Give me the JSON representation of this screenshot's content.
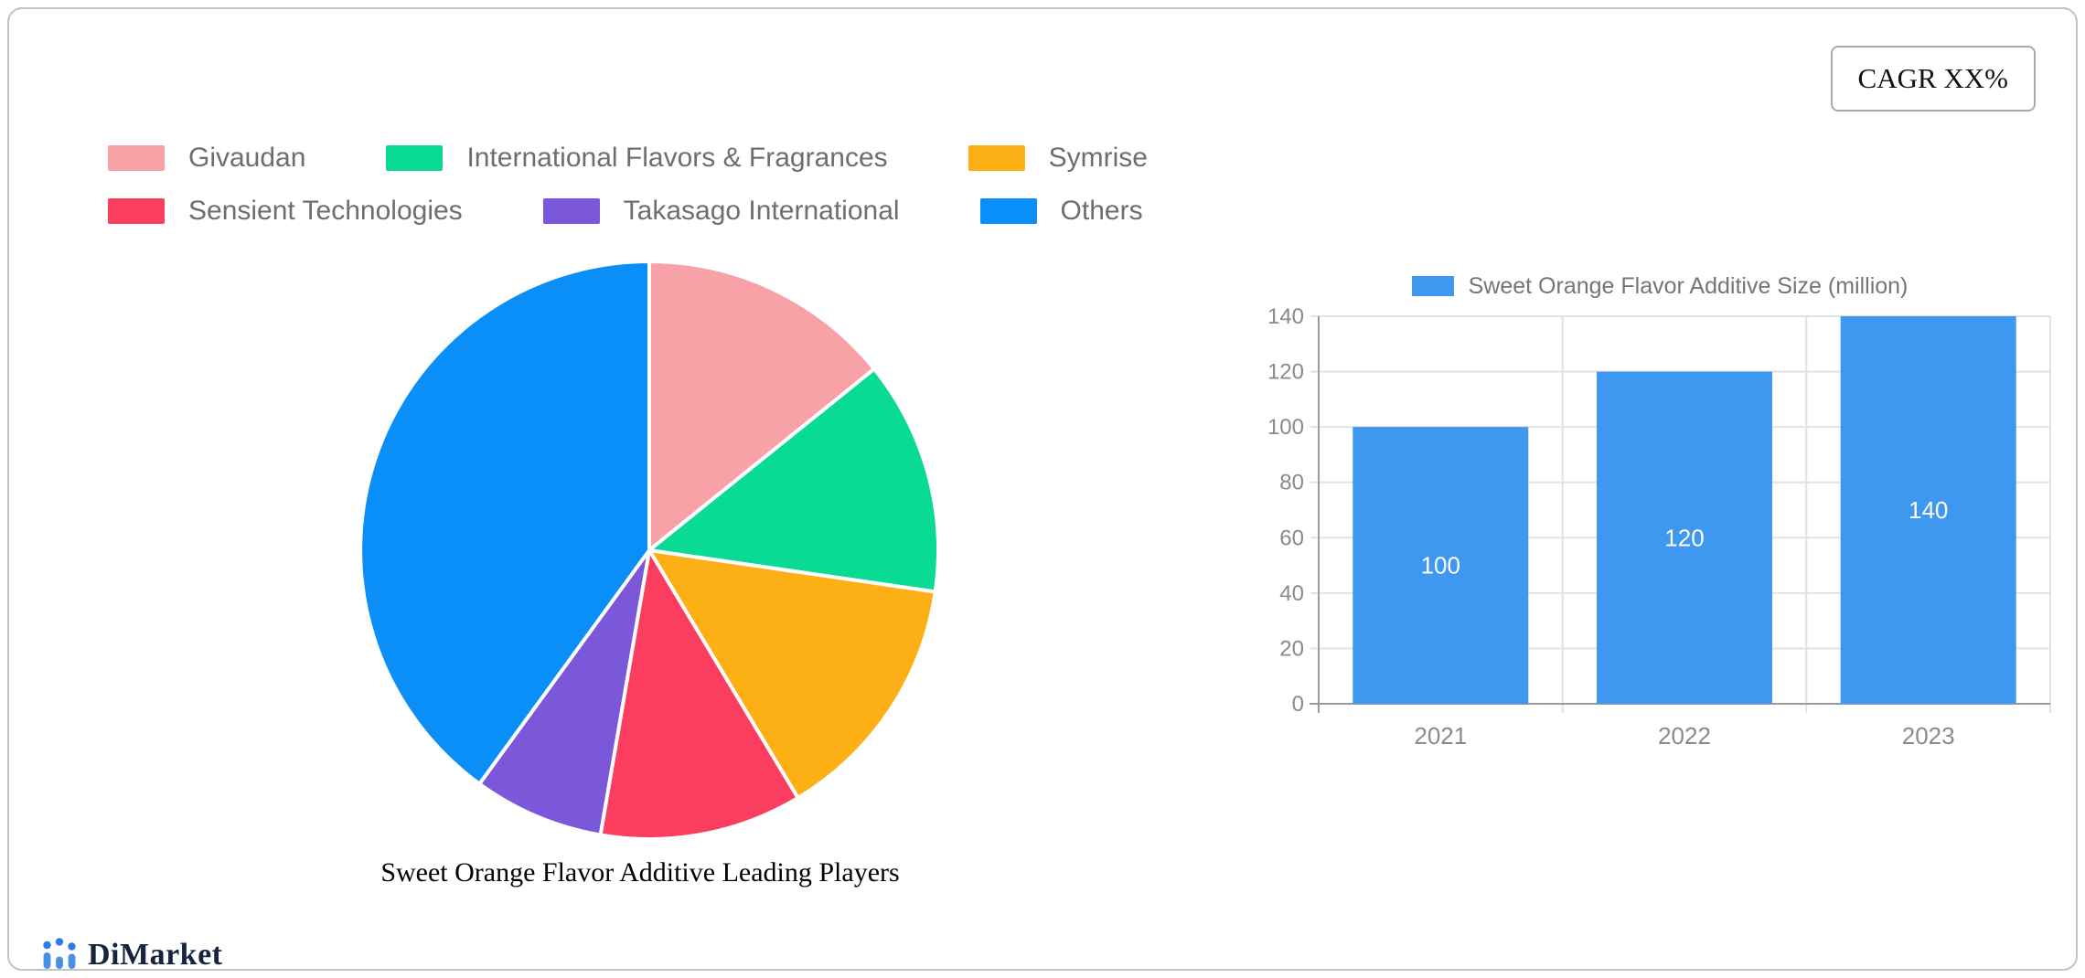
{
  "card": {
    "cagr_label": "CAGR XX%"
  },
  "branding": {
    "name": "DiMarket",
    "icon": "bar-chart-logo-icon",
    "icon_color": "#4a90e2",
    "icon_dot_color": "#2e7ce5",
    "text_color": "#152540"
  },
  "chart_data": [
    {
      "type": "pie",
      "title": "Sweet Orange Flavor Additive Leading Players",
      "legend_position": "top-left",
      "direction": "clockwise",
      "start_angle_deg": 0,
      "series": [
        {
          "name": "Givaudan",
          "value": 14.2,
          "color": "#f8a2a8"
        },
        {
          "name": "International Flavors & Fragrances",
          "value": 13.1,
          "color": "#09da94"
        },
        {
          "name": "Symrise",
          "value": 14.1,
          "color": "#fcb015"
        },
        {
          "name": "Sensient Technologies",
          "value": 11.3,
          "color": "#fb3d5f"
        },
        {
          "name": "Takasago International",
          "value": 7.3,
          "color": "#7b57d9"
        },
        {
          "name": "Others",
          "value": 40.0,
          "color": "#0a8ef7"
        }
      ]
    },
    {
      "type": "bar",
      "legend": "Sweet Orange Flavor Additive Size (million)",
      "categories": [
        "2021",
        "2022",
        "2023"
      ],
      "values": [
        100,
        120,
        140
      ],
      "bar_color": "#3f98ef",
      "value_label_color": "#ffffff",
      "ylim": [
        0,
        140
      ],
      "yticks": [
        0,
        20,
        40,
        60,
        80,
        100,
        120,
        140
      ],
      "grid": true,
      "grid_color": "#e2e2e2",
      "axis_color": "#9b9b9b",
      "legend_position": "top-center"
    }
  ]
}
